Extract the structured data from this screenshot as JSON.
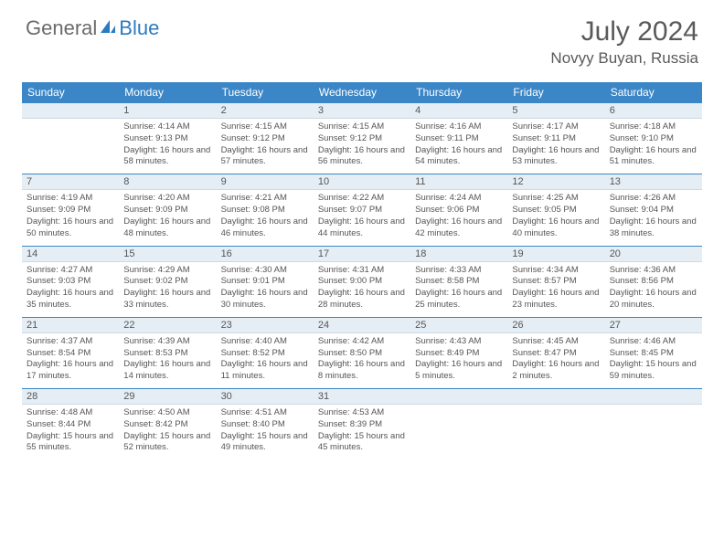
{
  "brand": {
    "part1": "General",
    "part2": "Blue"
  },
  "title": "July 2024",
  "location": "Novyy Buyan, Russia",
  "colors": {
    "header_bg": "#3b86c6",
    "numrow_bg": "#e6eef5",
    "text": "#555555",
    "border": "#3b86c6"
  },
  "day_names": [
    "Sunday",
    "Monday",
    "Tuesday",
    "Wednesday",
    "Thursday",
    "Friday",
    "Saturday"
  ],
  "weeks": [
    {
      "nums": [
        "",
        "1",
        "2",
        "3",
        "4",
        "5",
        "6"
      ],
      "cells": [
        null,
        {
          "sunrise": "4:14 AM",
          "sunset": "9:13 PM",
          "daylight": "16 hours and 58 minutes."
        },
        {
          "sunrise": "4:15 AM",
          "sunset": "9:12 PM",
          "daylight": "16 hours and 57 minutes."
        },
        {
          "sunrise": "4:15 AM",
          "sunset": "9:12 PM",
          "daylight": "16 hours and 56 minutes."
        },
        {
          "sunrise": "4:16 AM",
          "sunset": "9:11 PM",
          "daylight": "16 hours and 54 minutes."
        },
        {
          "sunrise": "4:17 AM",
          "sunset": "9:11 PM",
          "daylight": "16 hours and 53 minutes."
        },
        {
          "sunrise": "4:18 AM",
          "sunset": "9:10 PM",
          "daylight": "16 hours and 51 minutes."
        }
      ]
    },
    {
      "nums": [
        "7",
        "8",
        "9",
        "10",
        "11",
        "12",
        "13"
      ],
      "cells": [
        {
          "sunrise": "4:19 AM",
          "sunset": "9:09 PM",
          "daylight": "16 hours and 50 minutes."
        },
        {
          "sunrise": "4:20 AM",
          "sunset": "9:09 PM",
          "daylight": "16 hours and 48 minutes."
        },
        {
          "sunrise": "4:21 AM",
          "sunset": "9:08 PM",
          "daylight": "16 hours and 46 minutes."
        },
        {
          "sunrise": "4:22 AM",
          "sunset": "9:07 PM",
          "daylight": "16 hours and 44 minutes."
        },
        {
          "sunrise": "4:24 AM",
          "sunset": "9:06 PM",
          "daylight": "16 hours and 42 minutes."
        },
        {
          "sunrise": "4:25 AM",
          "sunset": "9:05 PM",
          "daylight": "16 hours and 40 minutes."
        },
        {
          "sunrise": "4:26 AM",
          "sunset": "9:04 PM",
          "daylight": "16 hours and 38 minutes."
        }
      ]
    },
    {
      "nums": [
        "14",
        "15",
        "16",
        "17",
        "18",
        "19",
        "20"
      ],
      "cells": [
        {
          "sunrise": "4:27 AM",
          "sunset": "9:03 PM",
          "daylight": "16 hours and 35 minutes."
        },
        {
          "sunrise": "4:29 AM",
          "sunset": "9:02 PM",
          "daylight": "16 hours and 33 minutes."
        },
        {
          "sunrise": "4:30 AM",
          "sunset": "9:01 PM",
          "daylight": "16 hours and 30 minutes."
        },
        {
          "sunrise": "4:31 AM",
          "sunset": "9:00 PM",
          "daylight": "16 hours and 28 minutes."
        },
        {
          "sunrise": "4:33 AM",
          "sunset": "8:58 PM",
          "daylight": "16 hours and 25 minutes."
        },
        {
          "sunrise": "4:34 AM",
          "sunset": "8:57 PM",
          "daylight": "16 hours and 23 minutes."
        },
        {
          "sunrise": "4:36 AM",
          "sunset": "8:56 PM",
          "daylight": "16 hours and 20 minutes."
        }
      ]
    },
    {
      "nums": [
        "21",
        "22",
        "23",
        "24",
        "25",
        "26",
        "27"
      ],
      "cells": [
        {
          "sunrise": "4:37 AM",
          "sunset": "8:54 PM",
          "daylight": "16 hours and 17 minutes."
        },
        {
          "sunrise": "4:39 AM",
          "sunset": "8:53 PM",
          "daylight": "16 hours and 14 minutes."
        },
        {
          "sunrise": "4:40 AM",
          "sunset": "8:52 PM",
          "daylight": "16 hours and 11 minutes."
        },
        {
          "sunrise": "4:42 AM",
          "sunset": "8:50 PM",
          "daylight": "16 hours and 8 minutes."
        },
        {
          "sunrise": "4:43 AM",
          "sunset": "8:49 PM",
          "daylight": "16 hours and 5 minutes."
        },
        {
          "sunrise": "4:45 AM",
          "sunset": "8:47 PM",
          "daylight": "16 hours and 2 minutes."
        },
        {
          "sunrise": "4:46 AM",
          "sunset": "8:45 PM",
          "daylight": "15 hours and 59 minutes."
        }
      ]
    },
    {
      "nums": [
        "28",
        "29",
        "30",
        "31",
        "",
        "",
        ""
      ],
      "cells": [
        {
          "sunrise": "4:48 AM",
          "sunset": "8:44 PM",
          "daylight": "15 hours and 55 minutes."
        },
        {
          "sunrise": "4:50 AM",
          "sunset": "8:42 PM",
          "daylight": "15 hours and 52 minutes."
        },
        {
          "sunrise": "4:51 AM",
          "sunset": "8:40 PM",
          "daylight": "15 hours and 49 minutes."
        },
        {
          "sunrise": "4:53 AM",
          "sunset": "8:39 PM",
          "daylight": "15 hours and 45 minutes."
        },
        null,
        null,
        null
      ]
    }
  ],
  "labels": {
    "sunrise": "Sunrise: ",
    "sunset": "Sunset: ",
    "daylight": "Daylight: "
  }
}
